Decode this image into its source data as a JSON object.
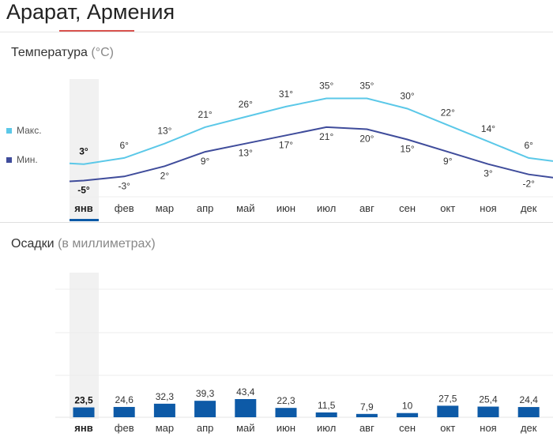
{
  "title": "Арарат, Армения",
  "selected_month_index": 0,
  "temperature": {
    "label": "Температура",
    "unit": "(°C)",
    "legend_max": "Макс.",
    "legend_min": "Мин.",
    "color_max": "#5bc8e8",
    "color_min": "#3f4c9b"
  },
  "precipitation": {
    "label": "Осадки",
    "unit": "(в миллиметрах)",
    "bar_color": "#0d5aa7",
    "highlight_color": "#f1f1f1",
    "accent_color": "#0d5aa7"
  },
  "chart_data": [
    {
      "type": "line",
      "title": "Температура (°C)",
      "categories": [
        "янв",
        "фев",
        "мар",
        "апр",
        "май",
        "июн",
        "июл",
        "авг",
        "сен",
        "окт",
        "ноя",
        "дек"
      ],
      "series": [
        {
          "name": "Макс.",
          "values": [
            3,
            6,
            13,
            21,
            26,
            31,
            35,
            35,
            30,
            22,
            14,
            6
          ],
          "labels": [
            "3°",
            "6°",
            "13°",
            "21°",
            "26°",
            "31°",
            "35°",
            "35°",
            "30°",
            "22°",
            "14°",
            "6°"
          ]
        },
        {
          "name": "Мин.",
          "values": [
            -5,
            -3,
            2,
            9,
            13,
            17,
            21,
            20,
            15,
            9,
            3,
            -2
          ],
          "labels": [
            "-5°",
            "-3°",
            "2°",
            "9°",
            "13°",
            "17°",
            "21°",
            "20°",
            "15°",
            "9°",
            "3°",
            "-2°"
          ]
        }
      ],
      "legend": "left"
    },
    {
      "type": "bar",
      "title": "Осадки (в миллиметрах)",
      "categories": [
        "янв",
        "фев",
        "мар",
        "апр",
        "май",
        "июн",
        "июл",
        "авг",
        "сен",
        "окт",
        "ноя",
        "дек"
      ],
      "values": [
        23.5,
        24.6,
        32.3,
        39.3,
        43.4,
        22.3,
        11.5,
        7.9,
        10,
        27.5,
        25.4,
        24.4
      ],
      "labels": [
        "23,5",
        "24,6",
        "32,3",
        "39,3",
        "43,4",
        "22,3",
        "11,5",
        "7,9",
        "10",
        "27,5",
        "25,4",
        "24,4"
      ],
      "grid": true
    }
  ]
}
